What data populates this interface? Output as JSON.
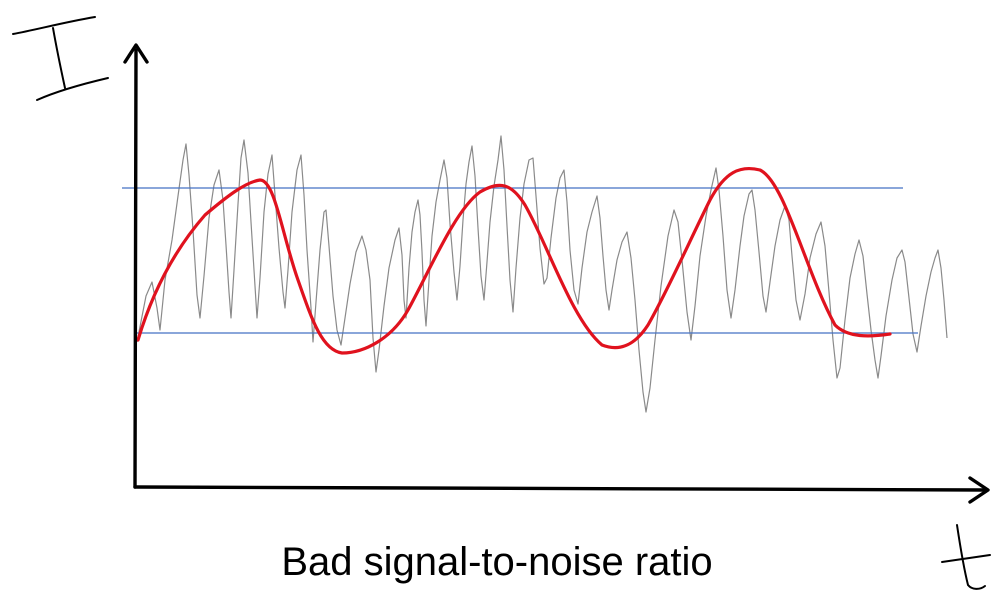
{
  "caption": "Bad signal-to-noise ratio",
  "axes": {
    "y_label": "I",
    "x_label": "t"
  },
  "colors": {
    "background": "#ffffff",
    "axis": "#000000",
    "noise": "#8a8a8a",
    "signal": "#e0121e",
    "reference_lines": "#4472c4"
  }
}
